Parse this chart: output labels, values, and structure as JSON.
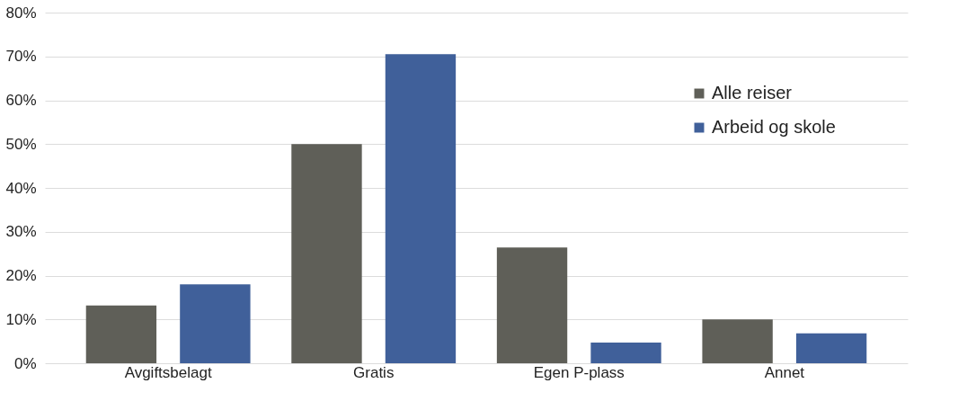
{
  "chart_data": {
    "type": "bar",
    "categories": [
      "Avgiftsbelagt",
      "Gratis",
      "Egen P-plass",
      "Annet"
    ],
    "series": [
      {
        "name": "Alle reiser",
        "color": "#5f5f58",
        "values": [
          13.2,
          50,
          26.4,
          10
        ]
      },
      {
        "name": "Arbeid og skole",
        "color": "#40609a",
        "values": [
          18,
          70.5,
          4.7,
          6.8
        ]
      }
    ],
    "ylim": [
      0,
      80
    ],
    "yticks": [
      {
        "value": 0,
        "label": "0%"
      },
      {
        "value": 10,
        "label": "10%"
      },
      {
        "value": 20,
        "label": "20%"
      },
      {
        "value": 30,
        "label": "30%"
      },
      {
        "value": 40,
        "label": "40%"
      },
      {
        "value": 50,
        "label": "50%"
      },
      {
        "value": 60,
        "label": "60%"
      },
      {
        "value": 70,
        "label": "70%"
      },
      {
        "value": 80,
        "label": "80%"
      }
    ],
    "grid": "y",
    "legend": "top right"
  }
}
